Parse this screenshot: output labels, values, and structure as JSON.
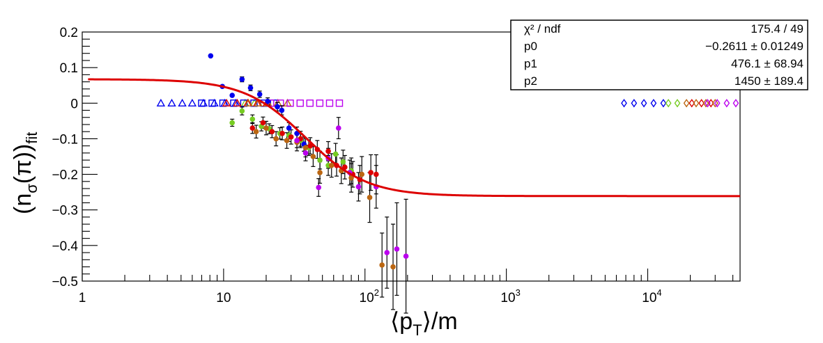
{
  "chart_data": {
    "type": "scatter",
    "xscale": "log",
    "xlim": [
      1,
      45000
    ],
    "ylim": [
      -0.5,
      0.2
    ],
    "grid": false,
    "xlabel": {
      "main": "⟨p",
      "sub": "T",
      "tail": "⟩/m"
    },
    "ylabel": {
      "open": "(n",
      "sub1": "σ",
      "mid": "(π))",
      "sub2": "fit"
    },
    "x_ticks": [
      {
        "value": 1,
        "base": "1",
        "exp": ""
      },
      {
        "value": 10,
        "base": "10",
        "exp": ""
      },
      {
        "value": 100,
        "base": "10",
        "exp": "2"
      },
      {
        "value": 1000,
        "base": "10",
        "exp": "3"
      },
      {
        "value": 10000,
        "base": "10",
        "exp": "4"
      }
    ],
    "y_ticks": [
      {
        "value": 0.2,
        "label": "0.2"
      },
      {
        "value": 0.1,
        "label": "0.1"
      },
      {
        "value": 0,
        "label": "0"
      },
      {
        "value": -0.1,
        "label": "−0.1"
      },
      {
        "value": -0.2,
        "label": "−0.2"
      },
      {
        "value": -0.3,
        "label": "−0.3"
      },
      {
        "value": -0.4,
        "label": "−0.4"
      },
      {
        "value": -0.5,
        "label": "−0.5"
      }
    ],
    "stats_box": {
      "position": "top-right",
      "rows": [
        {
          "label": "χ² / ndf",
          "value": "175.4 / 49"
        },
        {
          "label": "p0",
          "value": "−0.2611 ± 0.01249"
        },
        {
          "label": "p1",
          "value": "476.1 ± 68.94"
        },
        {
          "label": "p2",
          "value": "1450 ± 189.4"
        }
      ]
    },
    "fit_curve": {
      "color": "#dd0000",
      "formula": "p0 + p1 / (x^2 + p2)",
      "p0": -0.2611,
      "p1": 476.1,
      "p2": 1450,
      "x_range": [
        1.1,
        45000
      ]
    },
    "series": [
      {
        "color": "#0000ee",
        "marker": "filled-circle",
        "points": [
          [
            8.1,
            0.133
          ],
          [
            9.8,
            0.047
          ],
          [
            11.5,
            0.022
          ],
          [
            13.5,
            0.067
          ],
          [
            15.5,
            0.043
          ],
          [
            18.0,
            0.025
          ],
          [
            20.5,
            0.005
          ],
          [
            24.0,
            -0.01
          ],
          [
            25.8,
            -0.02
          ],
          [
            29.0,
            -0.07
          ],
          [
            33.0,
            -0.085
          ],
          [
            37.0,
            -0.115
          ]
        ],
        "errors": [
          0.004,
          0.005,
          0.006,
          0.007,
          0.008,
          0.009,
          0.01,
          0.012,
          0.013,
          0.015,
          0.018,
          0.02
        ]
      },
      {
        "color": "#77cc22",
        "marker": "filled-circle",
        "points": [
          [
            11.5,
            -0.055
          ],
          [
            13.5,
            -0.022
          ],
          [
            16.0,
            -0.045
          ],
          [
            18.5,
            -0.065
          ],
          [
            21.0,
            -0.072
          ],
          [
            25.0,
            -0.085
          ],
          [
            29.0,
            -0.09
          ],
          [
            35.0,
            -0.105
          ],
          [
            40.0,
            -0.125
          ],
          [
            48.0,
            -0.16
          ],
          [
            55.0,
            -0.175
          ],
          [
            62.0,
            -0.143
          ],
          [
            70.0,
            -0.165
          ],
          [
            80.0,
            -0.19
          ]
        ],
        "errors": [
          0.01,
          0.011,
          0.012,
          0.013,
          0.014,
          0.016,
          0.018,
          0.02,
          0.022,
          0.025,
          0.028,
          0.03,
          0.033,
          0.036
        ]
      },
      {
        "color": "#dd0000",
        "marker": "filled-circle",
        "points": [
          [
            16.0,
            -0.07
          ],
          [
            19.0,
            -0.055
          ],
          [
            22.0,
            -0.08
          ],
          [
            26.0,
            -0.085
          ],
          [
            30.0,
            -0.095
          ],
          [
            35.0,
            -0.1
          ],
          [
            41.0,
            -0.12
          ],
          [
            46.0,
            -0.13
          ],
          [
            55.0,
            -0.135
          ],
          [
            63.0,
            -0.175
          ],
          [
            72.0,
            -0.18
          ],
          [
            82.0,
            -0.2
          ],
          [
            92.0,
            -0.215
          ],
          [
            110.0,
            -0.195
          ],
          [
            120.0,
            -0.2
          ]
        ],
        "errors": [
          0.015,
          0.016,
          0.017,
          0.018,
          0.02,
          0.021,
          0.023,
          0.025,
          0.027,
          0.03,
          0.033,
          0.036,
          0.04,
          0.05,
          0.055
        ]
      },
      {
        "color": "#bb6611",
        "marker": "filled-circle",
        "points": [
          [
            17.0,
            -0.08
          ],
          [
            20.0,
            -0.07
          ],
          [
            23.5,
            -0.1
          ],
          [
            28.0,
            -0.105
          ],
          [
            33.0,
            -0.11
          ],
          [
            38.0,
            -0.125
          ],
          [
            43.0,
            -0.15
          ],
          [
            48.0,
            -0.195
          ],
          [
            58.0,
            -0.175
          ],
          [
            68.0,
            -0.19
          ],
          [
            80.0,
            -0.21
          ],
          [
            95.0,
            -0.2
          ],
          [
            108.0,
            -0.265
          ],
          [
            132.0,
            -0.455
          ],
          [
            158.0,
            -0.46
          ]
        ],
        "errors": [
          0.018,
          0.019,
          0.02,
          0.022,
          0.024,
          0.026,
          0.028,
          0.03,
          0.033,
          0.036,
          0.04,
          0.05,
          0.07,
          0.09,
          0.12
        ]
      },
      {
        "color": "#bb00ee",
        "marker": "filled-circle",
        "points": [
          [
            33.0,
            -0.105
          ],
          [
            38.0,
            -0.14
          ],
          [
            47.0,
            -0.237
          ],
          [
            55.0,
            -0.155
          ],
          [
            65.0,
            -0.07
          ],
          [
            78.0,
            -0.195
          ],
          [
            90.0,
            -0.235
          ],
          [
            120.0,
            -0.235
          ],
          [
            143.0,
            -0.42
          ],
          [
            168.0,
            -0.41
          ],
          [
            195.0,
            -0.43
          ]
        ],
        "errors": [
          0.02,
          0.022,
          0.025,
          0.028,
          0.03,
          0.035,
          0.04,
          0.06,
          0.1,
          0.13,
          0.16
        ]
      }
    ],
    "open_markers": [
      {
        "color": "#0000ee",
        "marker": "open-triangle",
        "x": [
          3.6,
          4.3,
          5.1,
          6.0,
          7.2,
          8.6,
          10.2,
          12.2
        ]
      },
      {
        "color": "#77cc22",
        "marker": "open-triangle",
        "x": [
          14.2,
          16.5
        ]
      },
      {
        "color": "#0000ee",
        "marker": "open-square",
        "x": [
          7.0,
          8.3,
          9.9,
          11.8,
          13.9,
          16.4,
          19.3,
          22.6
        ]
      },
      {
        "color": "#dd0000",
        "marker": "open-triangle",
        "x": [
          10.5,
          12.5,
          14.8,
          17.3,
          20.2
        ]
      },
      {
        "color": "#bb6611",
        "marker": "open-triangle",
        "x": [
          15.0,
          17.6,
          20.6,
          24.2,
          28.3
        ]
      },
      {
        "color": "#bb00ee",
        "marker": "open-square",
        "x": [
          21.5,
          25.2,
          29.6,
          34.8,
          40.8,
          47.9,
          56.2,
          65.9
        ]
      },
      {
        "color": "#0000ee",
        "marker": "open-diamond",
        "x": [
          6800,
          8000,
          9400,
          11000,
          12900
        ]
      },
      {
        "color": "#77cc22",
        "marker": "open-diamond",
        "x": [
          14000,
          16200
        ]
      },
      {
        "color": "#dd0000",
        "marker": "open-diamond",
        "x": [
          20500,
          24000,
          28000
        ]
      },
      {
        "color": "#bb6611",
        "marker": "open-diamond",
        "x": [
          18800,
          22000,
          25800,
          30000
        ]
      },
      {
        "color": "#bb00ee",
        "marker": "open-diamond",
        "x": [
          26500,
          31000,
          36200,
          42000
        ]
      }
    ]
  }
}
